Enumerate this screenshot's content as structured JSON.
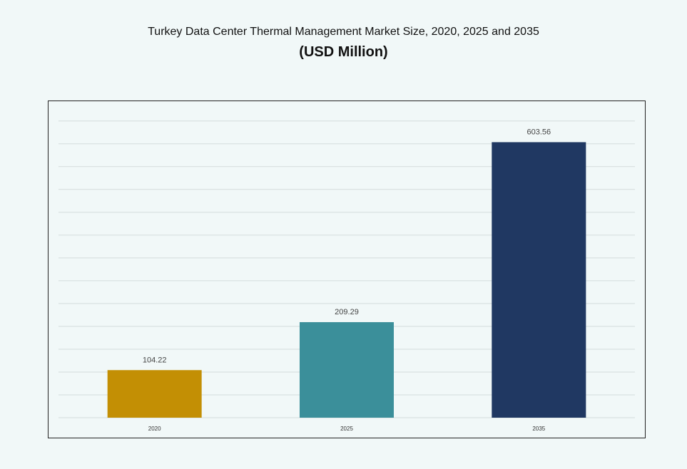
{
  "title_line1": "Turkey Data Center Thermal Management Market Size, 2020, 2025 and 2035",
  "title_line2": "(USD Million)",
  "chart_data": {
    "type": "bar",
    "categories": [
      "2020",
      "2025",
      "2035"
    ],
    "values": [
      104.22,
      209.29,
      603.56
    ],
    "data_labels": [
      "104.22",
      "209.29",
      "603.56"
    ],
    "colors": [
      "#c38f04",
      "#3b8f9a",
      "#203862"
    ],
    "title": "Turkey Data Center Thermal Management Market Size, 2020, 2025 and 2035",
    "subtitle": "(USD Million)",
    "xlabel": "",
    "ylabel": "",
    "ylim": [
      0,
      700
    ],
    "grid": true,
    "legend": "none"
  }
}
